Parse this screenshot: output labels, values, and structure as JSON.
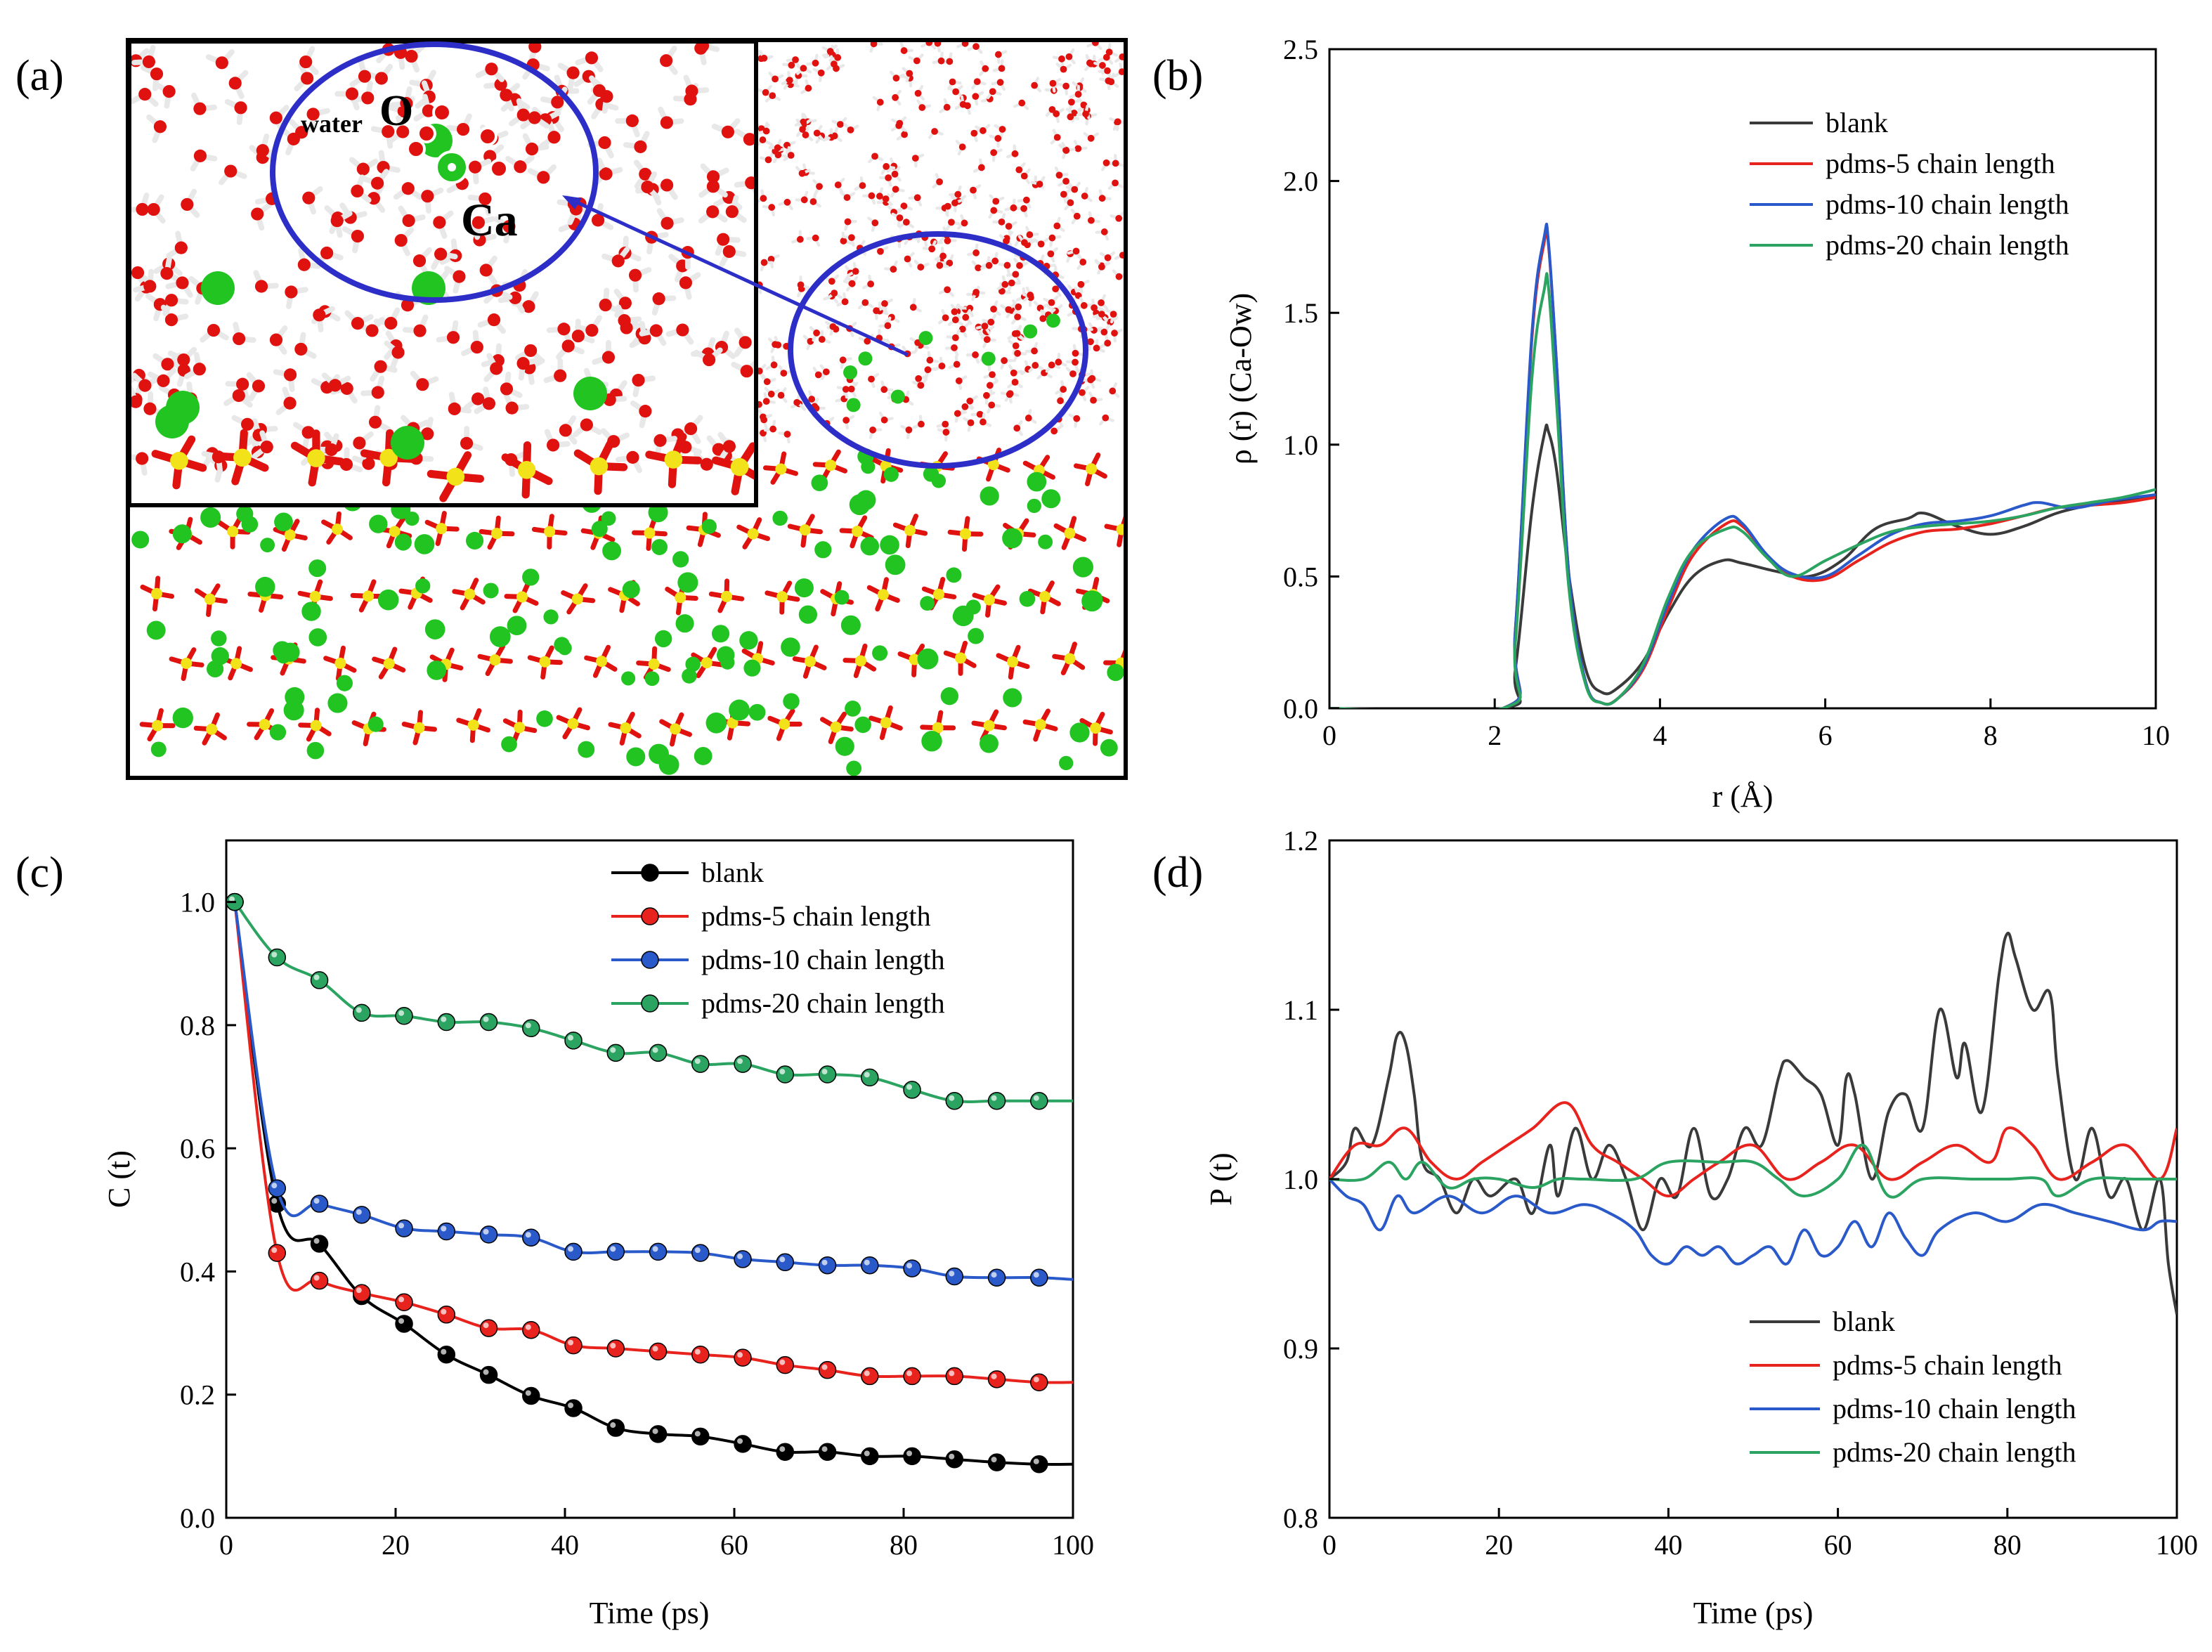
{
  "panel_labels": {
    "a": "(a)",
    "b": "(b)",
    "c": "(c)",
    "d": "(d)"
  },
  "snapshot": {
    "label_sub": "water",
    "label_o": "O",
    "label_ca": "Ca",
    "colors": {
      "oxygen": "#e0120f",
      "hydrogen": "#e8e8e8",
      "calcium": "#22c422",
      "sulfur": "#f2e21a",
      "highlight": "#2d2ec8"
    }
  },
  "colors": {
    "blank": "#3a3a3a",
    "pdms5": "#e8231e",
    "pdms10": "#2a59c9",
    "pdms20": "#2ba361"
  },
  "chart_data": [
    {
      "id": "b",
      "type": "line",
      "xlabel": "r (Å)",
      "ylabel": "ρ (r) (Ca-Ow)",
      "xlim": [
        0,
        10
      ],
      "ylim": [
        0,
        2.5
      ],
      "xticks": [
        "0",
        "2",
        "4",
        "6",
        "8",
        "10"
      ],
      "yticks": [
        "0.0",
        "0.5",
        "1.0",
        "1.5",
        "2.0",
        "2.5"
      ],
      "legend_position": "top-right",
      "series": [
        {
          "name": "blank",
          "color": "#3a3a3a",
          "x": [
            0,
            2.1,
            2.25,
            2.45,
            2.6,
            2.65,
            2.75,
            2.9,
            3.1,
            3.3,
            3.5,
            3.8,
            4.1,
            4.4,
            4.75,
            5.0,
            5.4,
            5.8,
            6.2,
            6.6,
            7.0,
            7.2,
            7.6,
            8.0,
            8.4,
            8.8,
            9.2,
            9.6,
            10
          ],
          "y": [
            0,
            0,
            0.15,
            0.75,
            1.04,
            1.05,
            0.9,
            0.5,
            0.15,
            0.06,
            0.08,
            0.18,
            0.36,
            0.5,
            0.56,
            0.55,
            0.52,
            0.5,
            0.56,
            0.68,
            0.72,
            0.74,
            0.69,
            0.66,
            0.69,
            0.74,
            0.77,
            0.79,
            0.81
          ]
        },
        {
          "name": "pdms-5 chain length",
          "color": "#e8231e",
          "x": [
            0,
            2.1,
            2.25,
            2.45,
            2.6,
            2.65,
            2.75,
            2.9,
            3.1,
            3.3,
            3.5,
            3.8,
            4.1,
            4.4,
            4.8,
            5.0,
            5.3,
            5.6,
            6.0,
            6.4,
            6.8,
            7.2,
            7.6,
            8.0,
            8.4,
            8.8,
            9.2,
            9.6,
            10
          ],
          "y": [
            0,
            0,
            0.3,
            1.4,
            1.77,
            1.76,
            1.3,
            0.5,
            0.1,
            0.02,
            0.04,
            0.15,
            0.38,
            0.58,
            0.7,
            0.69,
            0.58,
            0.5,
            0.49,
            0.56,
            0.63,
            0.67,
            0.68,
            0.7,
            0.73,
            0.76,
            0.77,
            0.78,
            0.8
          ]
        },
        {
          "name": "pdms-10 chain length",
          "color": "#2a59c9",
          "x": [
            0,
            2.1,
            2.25,
            2.45,
            2.6,
            2.65,
            2.75,
            2.9,
            3.1,
            3.3,
            3.5,
            3.8,
            4.1,
            4.4,
            4.8,
            5.0,
            5.3,
            5.6,
            6.0,
            6.4,
            6.8,
            7.2,
            7.6,
            8.0,
            8.4,
            8.6,
            9.0,
            9.5,
            10
          ],
          "y": [
            0,
            0,
            0.3,
            1.42,
            1.79,
            1.77,
            1.3,
            0.5,
            0.1,
            0.02,
            0.04,
            0.16,
            0.4,
            0.6,
            0.72,
            0.7,
            0.58,
            0.51,
            0.5,
            0.58,
            0.66,
            0.7,
            0.71,
            0.73,
            0.77,
            0.78,
            0.76,
            0.79,
            0.81
          ]
        },
        {
          "name": "pdms-20 chain length",
          "color": "#2ba361",
          "x": [
            0,
            2.1,
            2.25,
            2.45,
            2.6,
            2.65,
            2.75,
            2.9,
            3.1,
            3.3,
            3.5,
            3.8,
            4.1,
            4.4,
            4.8,
            5.0,
            5.3,
            5.6,
            6.0,
            6.4,
            6.8,
            7.2,
            7.6,
            8.0,
            8.4,
            8.8,
            9.2,
            9.6,
            10
          ],
          "y": [
            0,
            0,
            0.25,
            1.25,
            1.59,
            1.6,
            1.15,
            0.45,
            0.09,
            0.02,
            0.04,
            0.17,
            0.42,
            0.6,
            0.68,
            0.67,
            0.57,
            0.5,
            0.56,
            0.62,
            0.67,
            0.69,
            0.7,
            0.71,
            0.73,
            0.76,
            0.78,
            0.8,
            0.83
          ]
        }
      ]
    },
    {
      "id": "c",
      "type": "line",
      "xlabel": "Time (ps)",
      "ylabel": "C (t)",
      "xlim": [
        0,
        100
      ],
      "ylim": [
        0,
        1.1
      ],
      "xticks": [
        "0",
        "20",
        "40",
        "60",
        "80",
        "100"
      ],
      "yticks": [
        "0.0",
        "0.2",
        "0.4",
        "0.6",
        "0.8",
        "1.0"
      ],
      "legend_position": "top-center",
      "series": [
        {
          "name": "blank",
          "color": "#000000",
          "x": [
            1,
            6,
            11,
            16,
            21,
            26,
            31,
            36,
            41,
            46,
            51,
            56,
            61,
            66,
            71,
            76,
            81,
            86,
            91,
            96,
            100
          ],
          "y": [
            1.0,
            0.51,
            0.445,
            0.36,
            0.315,
            0.265,
            0.232,
            0.198,
            0.178,
            0.146,
            0.136,
            0.132,
            0.12,
            0.107,
            0.107,
            0.1,
            0.1,
            0.095,
            0.09,
            0.087,
            0.087
          ]
        },
        {
          "name": "pdms-5 chain length",
          "color": "#e8231e",
          "x": [
            1,
            6,
            11,
            16,
            21,
            26,
            31,
            36,
            41,
            46,
            51,
            56,
            61,
            66,
            71,
            76,
            81,
            86,
            91,
            96,
            100
          ],
          "y": [
            1.0,
            0.43,
            0.385,
            0.365,
            0.35,
            0.33,
            0.308,
            0.305,
            0.28,
            0.275,
            0.27,
            0.265,
            0.26,
            0.248,
            0.24,
            0.23,
            0.23,
            0.23,
            0.225,
            0.22,
            0.22
          ]
        },
        {
          "name": "pdms-10 chain length",
          "color": "#2a59c9",
          "x": [
            1,
            6,
            11,
            16,
            21,
            26,
            31,
            36,
            41,
            46,
            51,
            56,
            61,
            66,
            71,
            76,
            81,
            86,
            91,
            96,
            100
          ],
          "y": [
            1.0,
            0.535,
            0.51,
            0.492,
            0.47,
            0.465,
            0.46,
            0.455,
            0.432,
            0.432,
            0.432,
            0.43,
            0.42,
            0.415,
            0.41,
            0.41,
            0.405,
            0.392,
            0.39,
            0.39,
            0.387
          ]
        },
        {
          "name": "pdms-20 chain length",
          "color": "#2ba361",
          "x": [
            1,
            6,
            11,
            16,
            21,
            26,
            31,
            36,
            41,
            46,
            51,
            56,
            61,
            66,
            71,
            76,
            81,
            86,
            91,
            96,
            100
          ],
          "y": [
            1.0,
            0.91,
            0.873,
            0.82,
            0.815,
            0.805,
            0.805,
            0.795,
            0.775,
            0.755,
            0.755,
            0.737,
            0.737,
            0.72,
            0.72,
            0.715,
            0.695,
            0.677,
            0.677,
            0.677,
            0.677
          ]
        }
      ]
    },
    {
      "id": "d",
      "type": "line",
      "xlabel": "Time (ps)",
      "ylabel": "P (t)",
      "xlim": [
        0,
        100
      ],
      "ylim": [
        0.8,
        1.2
      ],
      "xticks": [
        "0",
        "20",
        "40",
        "60",
        "80",
        "100"
      ],
      "yticks": [
        "0.8",
        "0.9",
        "1.0",
        "1.1",
        "1.2"
      ],
      "legend_position": "bottom-right",
      "series": [
        {
          "name": "blank",
          "color": "#3a3a3a",
          "x": [
            0,
            2,
            3,
            5,
            7,
            8,
            9,
            10,
            11,
            13,
            15,
            17,
            19,
            22,
            24,
            26,
            27,
            29,
            31,
            33,
            35,
            37,
            39,
            41,
            43,
            45,
            47,
            49,
            51,
            53,
            54,
            56,
            58,
            60,
            61,
            62,
            64,
            66,
            68,
            70,
            72,
            74,
            75,
            77,
            79,
            80,
            81,
            83,
            85,
            86,
            88,
            90,
            92,
            94,
            96,
            98,
            99,
            100
          ],
          "y": [
            1.0,
            1.01,
            1.03,
            1.02,
            1.06,
            1.085,
            1.08,
            1.05,
            1.01,
            1.0,
            0.98,
            1.0,
            0.99,
            1.0,
            0.98,
            1.02,
            0.99,
            1.03,
            1.0,
            1.02,
            1.0,
            0.97,
            1.0,
            0.99,
            1.03,
            0.99,
            1.0,
            1.03,
            1.02,
            1.06,
            1.07,
            1.06,
            1.05,
            1.02,
            1.06,
            1.05,
            1.0,
            1.04,
            1.05,
            1.03,
            1.1,
            1.06,
            1.08,
            1.04,
            1.12,
            1.145,
            1.13,
            1.1,
            1.11,
            1.06,
            1.0,
            1.03,
            0.99,
            1.0,
            0.97,
            1.0,
            0.95,
            0.92
          ]
        },
        {
          "name": "pdms-5 chain length",
          "color": "#e8231e",
          "x": [
            0,
            3,
            6,
            9,
            12,
            15,
            18,
            21,
            24,
            28,
            31,
            34,
            37,
            40,
            43,
            46,
            50,
            54,
            58,
            62,
            66,
            70,
            74,
            78,
            80,
            83,
            86,
            90,
            94,
            98,
            100
          ],
          "y": [
            1.0,
            1.02,
            1.02,
            1.03,
            1.01,
            1.0,
            1.01,
            1.02,
            1.03,
            1.045,
            1.02,
            1.01,
            1.0,
            0.99,
            1.0,
            1.01,
            1.02,
            1.0,
            1.01,
            1.02,
            1.0,
            1.01,
            1.02,
            1.01,
            1.03,
            1.02,
            1.0,
            1.01,
            1.02,
            1.0,
            1.03
          ]
        },
        {
          "name": "pdms-10 chain length",
          "color": "#2a59c9",
          "x": [
            0,
            2,
            4,
            6,
            8,
            10,
            14,
            18,
            22,
            26,
            30,
            33,
            36,
            38,
            40,
            42,
            44,
            46,
            48,
            50,
            52,
            54,
            56,
            58,
            60,
            62,
            64,
            66,
            68,
            70,
            72,
            76,
            80,
            84,
            88,
            92,
            96,
            98,
            100
          ],
          "y": [
            1.0,
            0.99,
            0.985,
            0.97,
            0.99,
            0.98,
            0.99,
            0.98,
            0.99,
            0.98,
            0.985,
            0.98,
            0.97,
            0.955,
            0.95,
            0.96,
            0.955,
            0.96,
            0.95,
            0.955,
            0.96,
            0.95,
            0.97,
            0.955,
            0.96,
            0.975,
            0.96,
            0.98,
            0.965,
            0.955,
            0.97,
            0.98,
            0.975,
            0.985,
            0.98,
            0.975,
            0.97,
            0.975,
            0.975
          ]
        },
        {
          "name": "pdms-20 chain length",
          "color": "#2ba361",
          "x": [
            0,
            4,
            7,
            9,
            11,
            14,
            17,
            20,
            24,
            27,
            30,
            36,
            40,
            46,
            50,
            53,
            56,
            60,
            63,
            66,
            70,
            76,
            80,
            84,
            86,
            90,
            95,
            100
          ],
          "y": [
            1.0,
            1.0,
            1.01,
            1.0,
            1.01,
            0.995,
            1.0,
            1.0,
            0.995,
            1.0,
            1.0,
            1.0,
            1.01,
            1.01,
            1.01,
            1.0,
            0.99,
            1.0,
            1.02,
            0.99,
            1.0,
            1.0,
            1.0,
            1.0,
            0.99,
            1.0,
            1.0,
            1.0
          ]
        }
      ]
    }
  ]
}
